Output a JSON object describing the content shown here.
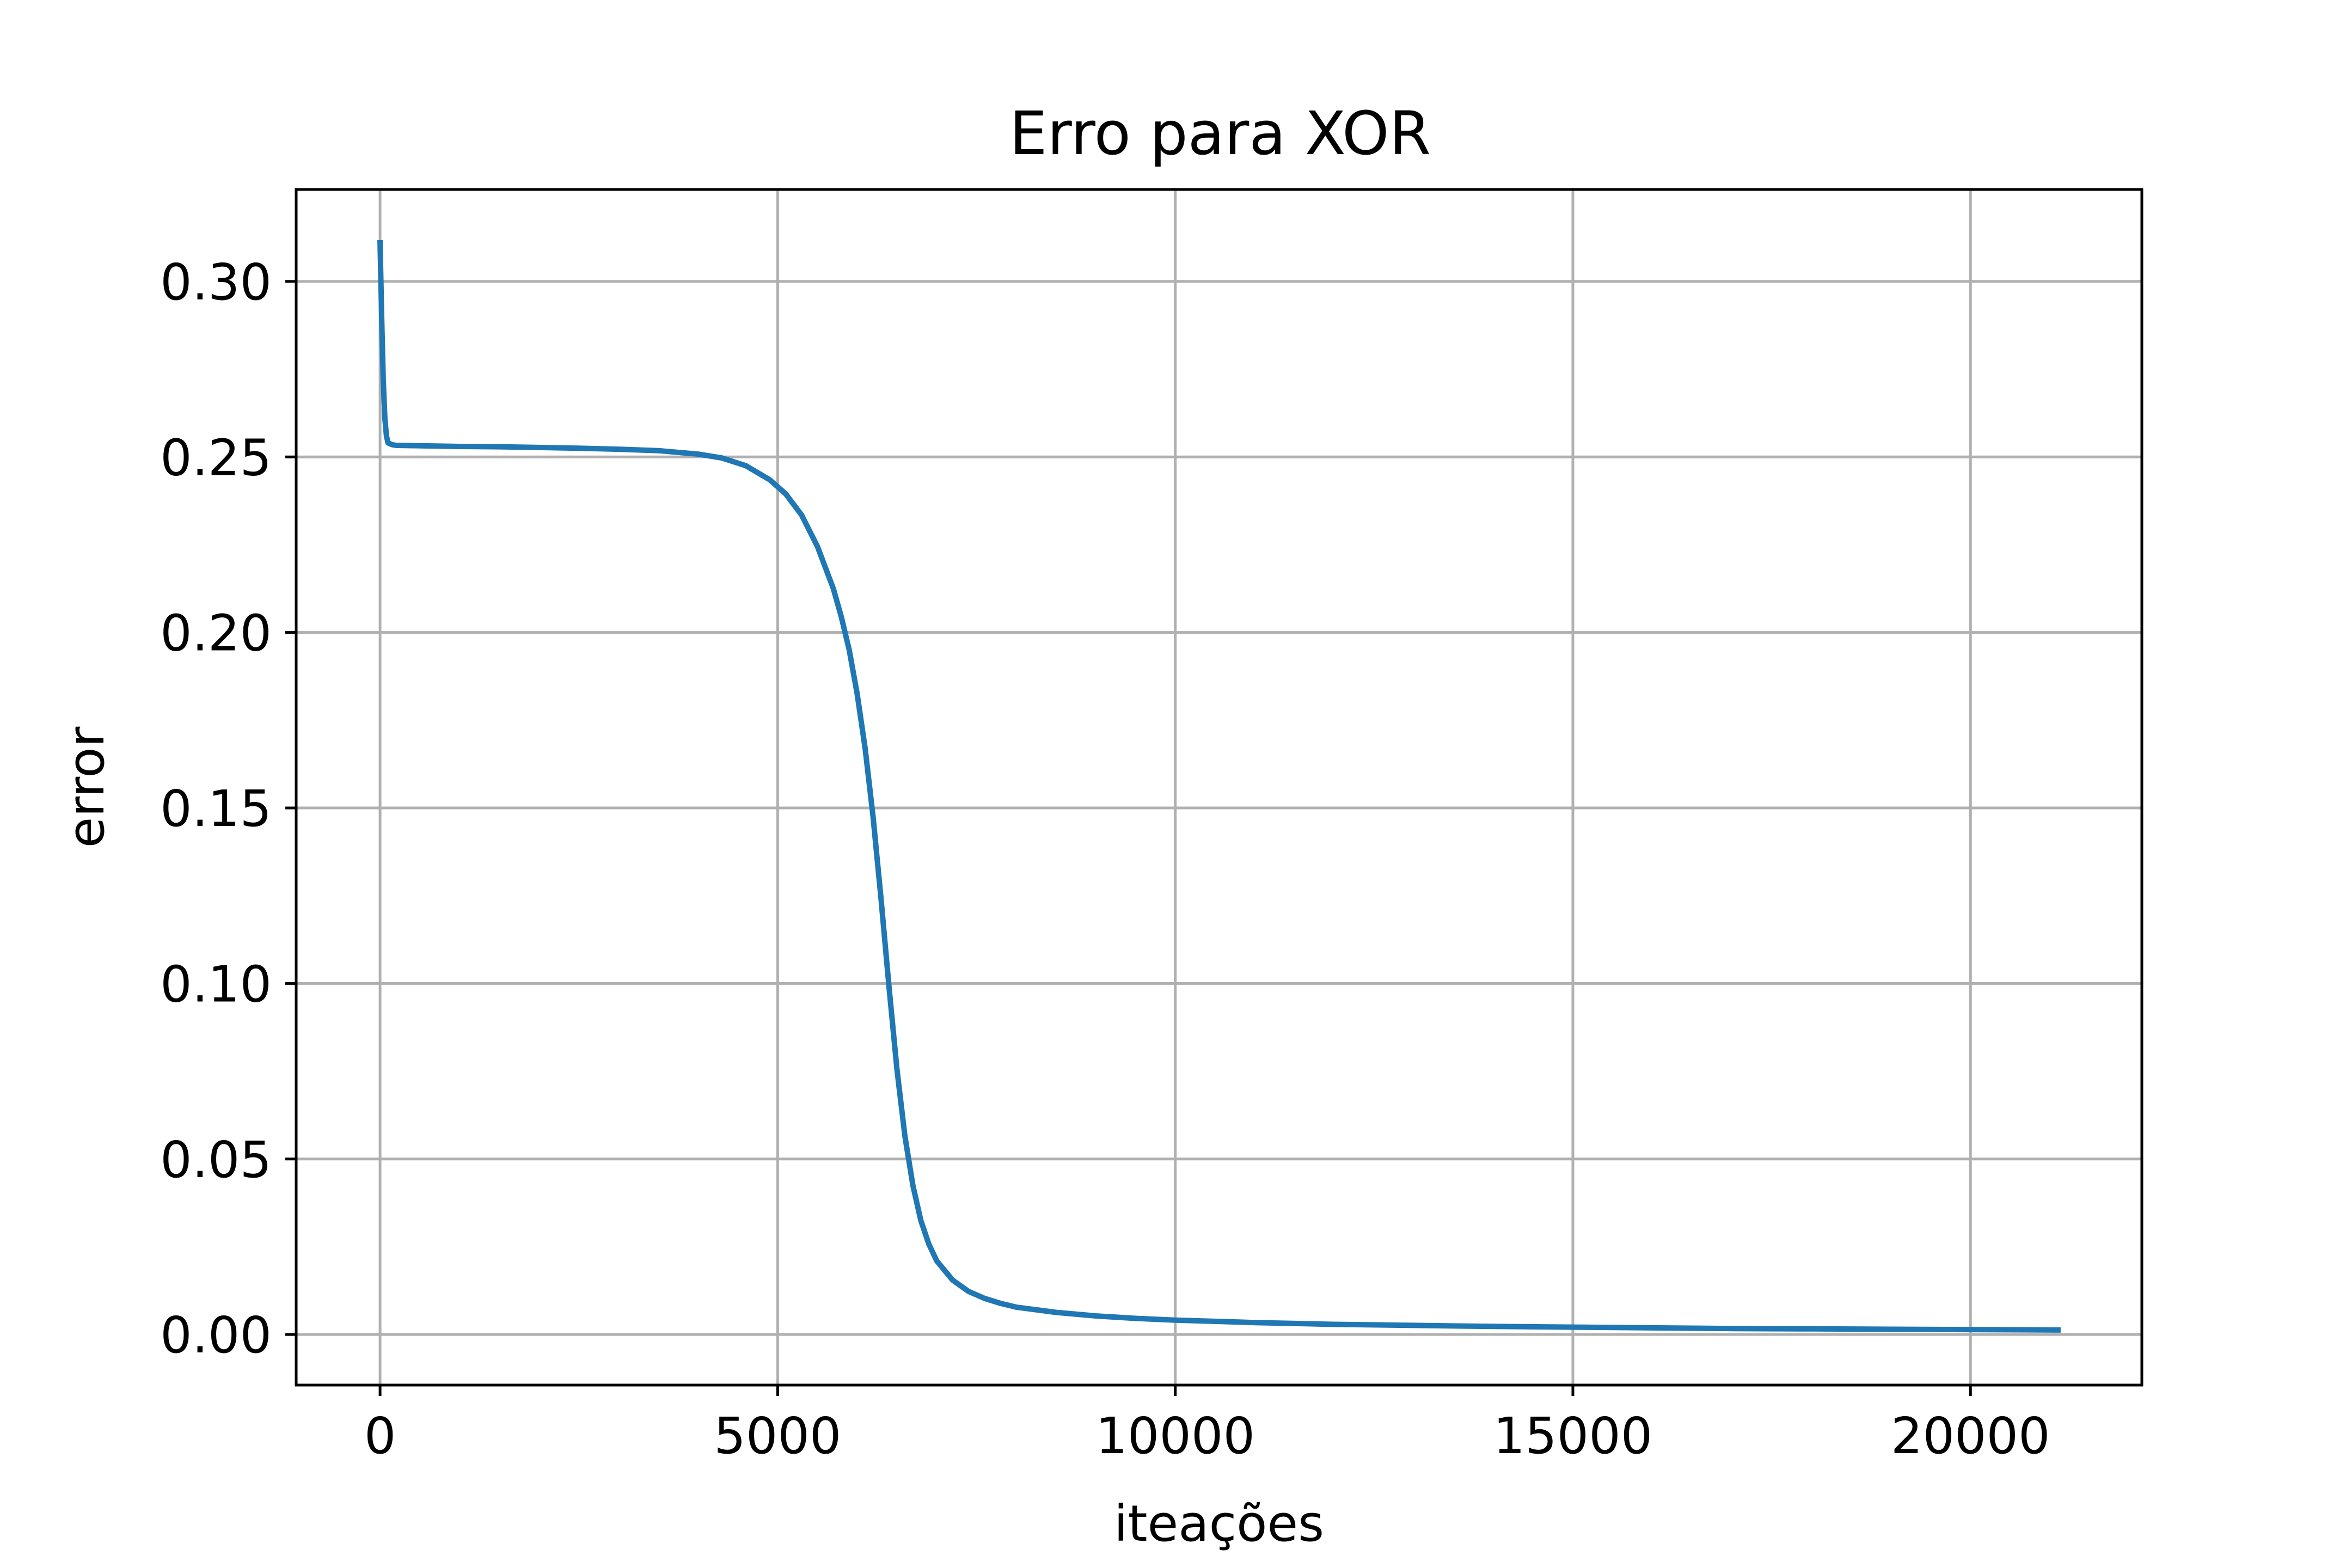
{
  "chart_data": {
    "type": "line",
    "title": "Erro para XOR",
    "xlabel": "iteações",
    "ylabel": "error",
    "xlim": [
      -1055,
      22155
    ],
    "ylim": [
      -0.0144,
      0.3262
    ],
    "xticks": [
      0,
      5000,
      10000,
      15000,
      20000
    ],
    "xtick_labels": [
      "0",
      "5000",
      "10000",
      "15000",
      "20000"
    ],
    "yticks": [
      0.0,
      0.05,
      0.1,
      0.15,
      0.2,
      0.25,
      0.3
    ],
    "ytick_labels": [
      "0.00",
      "0.05",
      "0.10",
      "0.15",
      "0.20",
      "0.25",
      "0.30"
    ],
    "grid": true,
    "series": [
      {
        "color": "#1f77b4",
        "x": [
          0,
          20,
          40,
          60,
          80,
          100,
          150,
          200,
          500,
          1000,
          1500,
          2000,
          2500,
          3000,
          3500,
          4000,
          4300,
          4600,
          4900,
          5100,
          5300,
          5500,
          5700,
          5800,
          5900,
          6000,
          6100,
          6200,
          6300,
          6400,
          6500,
          6600,
          6700,
          6800,
          6900,
          7000,
          7200,
          7400,
          7600,
          7800,
          8000,
          8500,
          9000,
          9500,
          10000,
          11000,
          12000,
          13000,
          14000,
          15000,
          16000,
          17000,
          18000,
          19000,
          20000,
          21100
        ],
        "y": [
          0.311,
          0.29,
          0.272,
          0.261,
          0.256,
          0.254,
          0.2535,
          0.2533,
          0.2532,
          0.253,
          0.2529,
          0.2527,
          0.2525,
          0.2522,
          0.2518,
          0.2508,
          0.2497,
          0.2475,
          0.2435,
          0.2395,
          0.2335,
          0.2245,
          0.2125,
          0.2045,
          0.195,
          0.1825,
          0.167,
          0.1475,
          0.124,
          0.099,
          0.0755,
          0.0565,
          0.0425,
          0.0325,
          0.0258,
          0.021,
          0.0155,
          0.0123,
          0.0103,
          0.0089,
          0.0078,
          0.0063,
          0.0053,
          0.0046,
          0.0041,
          0.0034,
          0.0029,
          0.0026,
          0.0023,
          0.0021,
          0.0019,
          0.0017,
          0.0016,
          0.0015,
          0.0014,
          0.0013
        ]
      }
    ]
  }
}
